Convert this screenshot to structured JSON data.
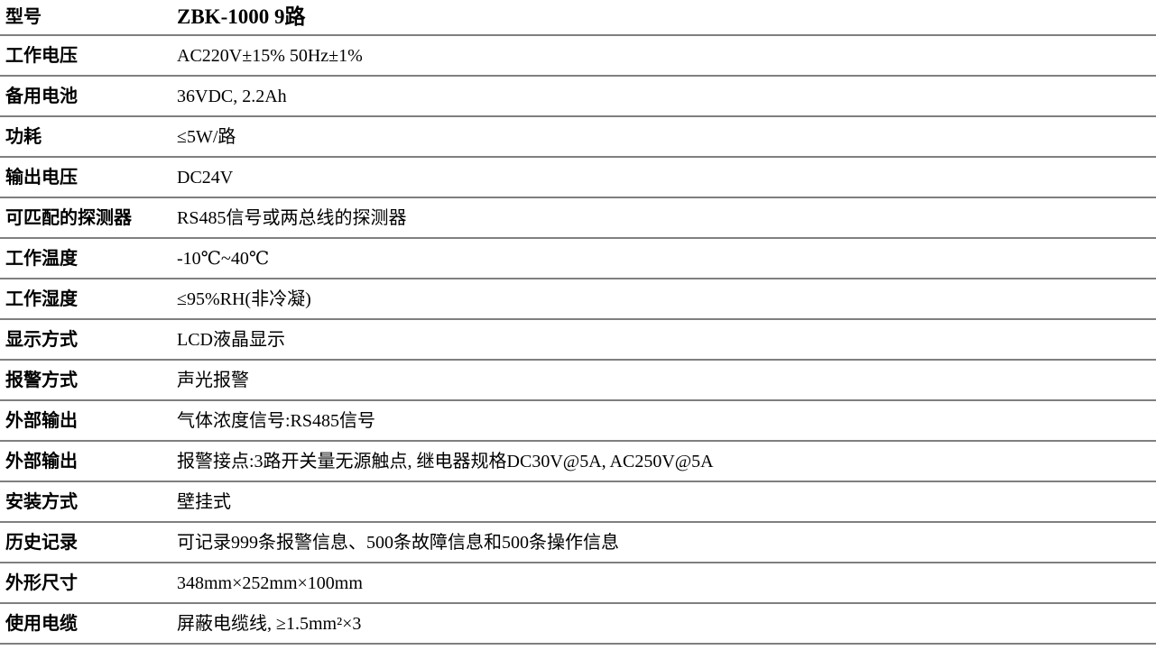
{
  "page": {
    "background_color": "#ffffff",
    "text_color": "#000000",
    "divider_color": "#7f7f7f"
  },
  "spec_table": {
    "rows": [
      {
        "label": "型号",
        "value": "ZBK-1000 9路"
      },
      {
        "label": "工作电压",
        "value": "AC220V±15% 50Hz±1%"
      },
      {
        "label": "备用电池",
        "value": "36VDC, 2.2Ah"
      },
      {
        "label": "功耗",
        "value": "≤5W/路"
      },
      {
        "label": "输出电压",
        "value": "DC24V"
      },
      {
        "label": "可匹配的探测器",
        "value": "RS485信号或两总线的探测器"
      },
      {
        "label": "工作温度",
        "value": "-10℃~40℃"
      },
      {
        "label": "工作湿度",
        "value": "≤95%RH(非冷凝)"
      },
      {
        "label": "显示方式",
        "value": "LCD液晶显示"
      },
      {
        "label": "报警方式",
        "value": "声光报警"
      },
      {
        "label": "外部输出",
        "value": "气体浓度信号:RS485信号"
      },
      {
        "label": "外部输出",
        "value": "报警接点:3路开关量无源触点, 继电器规格DC30V@5A, AC250V@5A"
      },
      {
        "label": "安装方式",
        "value": "壁挂式"
      },
      {
        "label": "历史记录",
        "value": "可记录999条报警信息、500条故障信息和500条操作信息"
      },
      {
        "label": "外形尺寸",
        "value": "348mm×252mm×100mm"
      },
      {
        "label": "使用电缆",
        "value": "屏蔽电缆线, ≥1.5mm²×3"
      }
    ]
  }
}
